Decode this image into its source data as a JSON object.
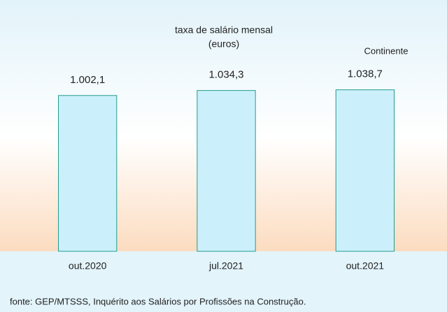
{
  "chart_data": {
    "type": "bar",
    "title": "taxa de salário mensal",
    "subtitle": "(euros)",
    "annotation": "Continente",
    "source": "fonte: GEP/MTSSS, Inquérito aos Salários por Profissões na Construção.",
    "categories": [
      "out.2020",
      "jul.2021",
      "out.2021"
    ],
    "values": [
      1002.1,
      1034.3,
      1038.7
    ],
    "value_labels": [
      "1.002,1",
      "1.034,3",
      "1.038,7"
    ],
    "color": "#ccf0fb",
    "ylim": [
      0,
      1100
    ]
  }
}
